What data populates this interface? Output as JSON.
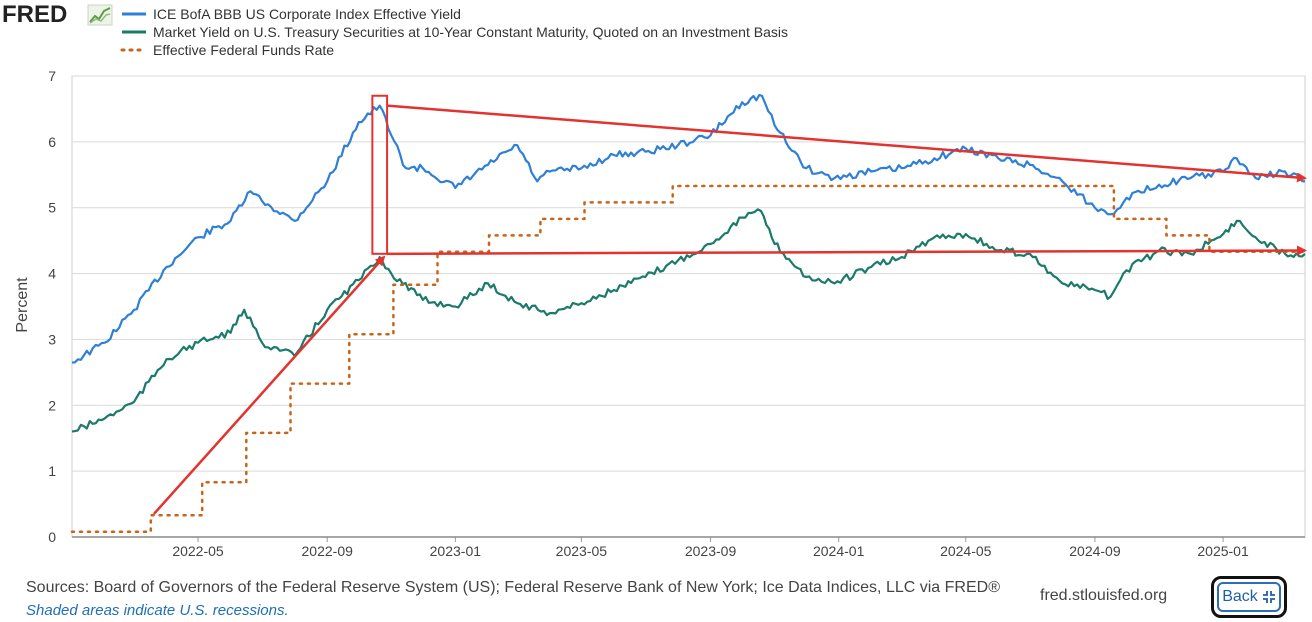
{
  "brand": {
    "logo_text": "FRED"
  },
  "colors": {
    "series1": "#2f7fd6",
    "series2": "#1b7a6a",
    "series3": "#c5651c",
    "annotation": "#e2332f",
    "grid": "#d9d9d9"
  },
  "chart_data": {
    "type": "line",
    "ylabel": "Percent",
    "ylim": [
      0,
      7
    ],
    "yticks": [
      "0",
      "1",
      "2",
      "3",
      "4",
      "5",
      "6",
      "7"
    ],
    "x_start": "2022-01-01",
    "x_end": "2025-03-20",
    "xticks": [
      "2022-05",
      "2022-09",
      "2023-01",
      "2023-05",
      "2023-09",
      "2024-01",
      "2024-05",
      "2024-09",
      "2025-01"
    ],
    "grid": true,
    "legend_position": "top-left",
    "series": [
      {
        "name": "ICE BofA BBB US Corporate Index Effective Yield",
        "style": "solid",
        "x": [
          "2022-01-01",
          "2022-02-01",
          "2022-03-01",
          "2022-04-01",
          "2022-05-01",
          "2022-06-01",
          "2022-06-20",
          "2022-07-01",
          "2022-08-01",
          "2022-09-01",
          "2022-10-01",
          "2022-10-21",
          "2022-11-01",
          "2022-11-15",
          "2022-12-01",
          "2023-01-01",
          "2023-02-01",
          "2023-03-01",
          "2023-03-20",
          "2023-04-01",
          "2023-05-01",
          "2023-06-01",
          "2023-07-01",
          "2023-08-01",
          "2023-09-01",
          "2023-10-01",
          "2023-10-20",
          "2023-11-01",
          "2023-12-01",
          "2023-12-28",
          "2024-02-01",
          "2024-03-01",
          "2024-04-01",
          "2024-05-01",
          "2024-06-01",
          "2024-07-01",
          "2024-08-01",
          "2024-09-01",
          "2024-09-16",
          "2024-10-01",
          "2024-11-01",
          "2024-12-01",
          "2025-01-01",
          "2025-01-14",
          "2025-02-01",
          "2025-03-01",
          "2025-03-20"
        ],
        "y": [
          2.65,
          2.95,
          3.45,
          4.1,
          4.55,
          4.8,
          5.25,
          5.1,
          4.8,
          5.4,
          6.3,
          6.55,
          6.1,
          5.6,
          5.6,
          5.3,
          5.65,
          5.95,
          5.4,
          5.55,
          5.6,
          5.8,
          5.85,
          5.95,
          6.1,
          6.6,
          6.7,
          6.25,
          5.6,
          5.45,
          5.55,
          5.6,
          5.75,
          5.9,
          5.75,
          5.65,
          5.4,
          5.0,
          4.9,
          5.15,
          5.35,
          5.45,
          5.55,
          5.75,
          5.45,
          5.55,
          5.4
        ]
      },
      {
        "name": "Market Yield on U.S. Treasury Securities at 10-Year Constant Maturity, Quoted on an Investment Basis",
        "style": "solid",
        "x": [
          "2022-01-01",
          "2022-02-01",
          "2022-03-01",
          "2022-04-01",
          "2022-05-01",
          "2022-06-01",
          "2022-06-14",
          "2022-07-01",
          "2022-08-01",
          "2022-09-01",
          "2022-10-01",
          "2022-10-21",
          "2022-11-01",
          "2022-12-01",
          "2023-01-01",
          "2023-02-01",
          "2023-03-01",
          "2023-04-01",
          "2023-05-01",
          "2023-06-01",
          "2023-07-01",
          "2023-08-01",
          "2023-09-01",
          "2023-10-01",
          "2023-10-19",
          "2023-11-01",
          "2023-12-01",
          "2023-12-28",
          "2024-02-01",
          "2024-03-01",
          "2024-04-01",
          "2024-05-01",
          "2024-06-01",
          "2024-07-01",
          "2024-08-01",
          "2024-09-01",
          "2024-09-16",
          "2024-10-01",
          "2024-11-01",
          "2024-12-01",
          "2025-01-01",
          "2025-01-14",
          "2025-02-01",
          "2025-03-01",
          "2025-03-20"
        ],
        "y": [
          1.6,
          1.8,
          2.05,
          2.7,
          2.95,
          3.1,
          3.45,
          2.95,
          2.75,
          3.45,
          3.9,
          4.25,
          4.0,
          3.6,
          3.5,
          3.85,
          3.55,
          3.4,
          3.55,
          3.75,
          3.95,
          4.2,
          4.45,
          4.85,
          4.95,
          4.45,
          3.95,
          3.85,
          4.1,
          4.25,
          4.55,
          4.6,
          4.35,
          4.3,
          3.85,
          3.75,
          3.65,
          4.05,
          4.35,
          4.3,
          4.6,
          4.8,
          4.55,
          4.3,
          4.3
        ]
      },
      {
        "name": "Effective Federal Funds Rate",
        "style": "dotted",
        "x": [
          "2022-01-01",
          "2022-03-17",
          "2022-05-05",
          "2022-06-16",
          "2022-07-28",
          "2022-09-22",
          "2022-11-03",
          "2022-12-15",
          "2023-02-02",
          "2023-03-23",
          "2023-05-04",
          "2023-07-27",
          "2024-09-19",
          "2024-11-08",
          "2024-12-19",
          "2025-03-20"
        ],
        "y": [
          0.08,
          0.33,
          0.83,
          1.58,
          2.33,
          3.08,
          3.83,
          4.33,
          4.58,
          4.83,
          5.08,
          5.33,
          4.83,
          4.58,
          4.33,
          4.33
        ],
        "step": true
      }
    ],
    "annotations": [
      {
        "type": "arrow",
        "from": [
          "2022-03-20",
          0.35
        ],
        "to": [
          "2022-10-25",
          4.25
        ]
      },
      {
        "type": "rect",
        "from": [
          "2022-10-14",
          4.3
        ],
        "to": [
          "2022-10-28",
          6.7
        ]
      },
      {
        "type": "arrow",
        "from": [
          "2022-10-28",
          6.55
        ],
        "to": [
          "2025-03-20",
          5.45
        ]
      },
      {
        "type": "arrow",
        "from": [
          "2022-10-28",
          4.3
        ],
        "to": [
          "2025-03-20",
          4.35
        ]
      }
    ]
  },
  "footer": {
    "sources": "Sources: Board of Governors of the Federal Reserve System (US); Federal Reserve Bank of New York; Ice Data Indices, LLC via FRED®",
    "note": "Shaded areas indicate U.S. recessions.",
    "site": "fred.stlouisfed.org",
    "back_label": "Back"
  }
}
